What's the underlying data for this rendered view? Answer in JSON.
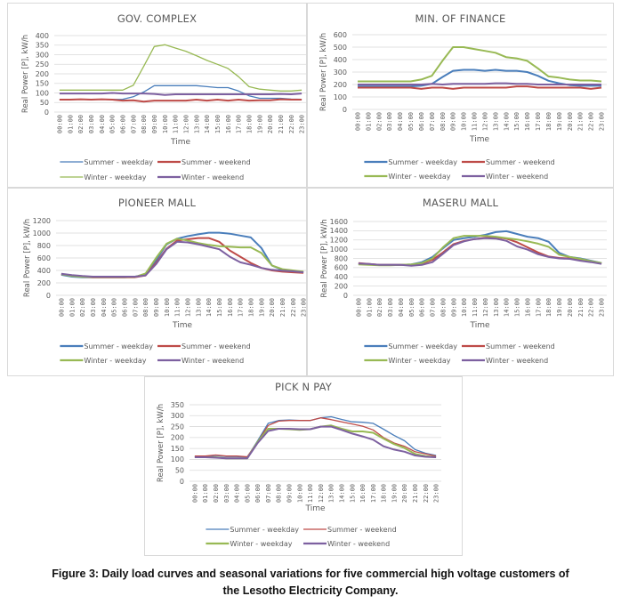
{
  "caption": {
    "line1": "Figure 3: Daily load curves and seasonal variations for five commercial high voltage customers of",
    "line2": "the Lesotho Electricity Company."
  },
  "series_colors": {
    "Summer - weekday": "#4a7ebb",
    "Summer - weekend": "#be4b48",
    "Winter - weekday": "#98b954",
    "Winter - weekend": "#7d60a0"
  },
  "chart_data": [
    {
      "id": "gov-complex",
      "type": "line",
      "title": "GOV. COMPLEX",
      "xlabel": "Time",
      "ylabel": "Real Power [P], kW/h",
      "ylim": [
        0,
        400
      ],
      "yticks": [
        0,
        50,
        100,
        150,
        200,
        250,
        300,
        350,
        400
      ],
      "grid": true,
      "legend_position": "bottom",
      "categories": [
        "00:00",
        "01:00",
        "02:00",
        "03:00",
        "04:00",
        "05:00",
        "06:00",
        "07:00",
        "08:00",
        "09:00",
        "10:00",
        "11:00",
        "12:00",
        "13:00",
        "14:00",
        "15:00",
        "16:00",
        "17:00",
        "18:00",
        "19:00",
        "20:00",
        "21:00",
        "22:00",
        "23:00"
      ],
      "series": [
        {
          "name": "Summer - weekday",
          "values": [
            65,
            65,
            67,
            66,
            67,
            66,
            67,
            80,
            105,
            138,
            138,
            138,
            138,
            138,
            133,
            128,
            128,
            110,
            85,
            72,
            72,
            72,
            68,
            67
          ]
        },
        {
          "name": "Summer - weekend",
          "values": [
            65,
            65,
            67,
            65,
            67,
            65,
            60,
            62,
            55,
            60,
            60,
            60,
            60,
            65,
            60,
            65,
            60,
            65,
            60,
            62,
            62,
            67,
            65,
            65
          ]
        },
        {
          "name": "Winter - weekday",
          "values": [
            115,
            115,
            115,
            115,
            115,
            115,
            115,
            140,
            240,
            343,
            352,
            335,
            318,
            295,
            270,
            250,
            228,
            185,
            133,
            120,
            115,
            110,
            110,
            115
          ]
        },
        {
          "name": "Winter - weekend",
          "values": [
            97,
            97,
            97,
            97,
            97,
            100,
            97,
            97,
            97,
            95,
            90,
            93,
            93,
            93,
            93,
            93,
            93,
            93,
            93,
            93,
            93,
            95,
            93,
            97
          ]
        }
      ]
    },
    {
      "id": "min-of-finance",
      "type": "line",
      "title": "MIN. OF FINANCE",
      "xlabel": "Time",
      "ylabel": "Real Power [P], kW/h",
      "ylim": [
        0,
        600
      ],
      "yticks": [
        0,
        100,
        200,
        300,
        400,
        500,
        600
      ],
      "grid": true,
      "legend_position": "bottom",
      "categories": [
        "00:00",
        "01:00",
        "02:00",
        "03:00",
        "04:00",
        "05:00",
        "06:00",
        "07:00",
        "08:00",
        "09:00",
        "10:00",
        "11:00",
        "12:00",
        "13:00",
        "14:00",
        "15:00",
        "16:00",
        "17:00",
        "18:00",
        "19:00",
        "20:00",
        "21:00",
        "22:00",
        "23:00"
      ],
      "series": [
        {
          "name": "Summer - weekday",
          "values": [
            185,
            185,
            185,
            185,
            185,
            185,
            190,
            205,
            260,
            310,
            318,
            318,
            310,
            318,
            310,
            310,
            300,
            270,
            230,
            210,
            195,
            190,
            190,
            190
          ]
        },
        {
          "name": "Summer - weekend",
          "values": [
            175,
            175,
            175,
            175,
            175,
            175,
            165,
            175,
            175,
            165,
            175,
            175,
            175,
            175,
            175,
            185,
            185,
            175,
            175,
            175,
            175,
            175,
            165,
            175
          ]
        },
        {
          "name": "Winter - weekday",
          "values": [
            225,
            225,
            225,
            225,
            225,
            225,
            240,
            270,
            390,
            500,
            500,
            485,
            470,
            455,
            420,
            410,
            390,
            330,
            265,
            255,
            240,
            232,
            232,
            225
          ]
        },
        {
          "name": "Winter - weekend",
          "values": [
            200,
            200,
            200,
            200,
            200,
            200,
            200,
            205,
            200,
            205,
            205,
            205,
            205,
            210,
            210,
            205,
            205,
            200,
            200,
            200,
            200,
            200,
            200,
            200
          ]
        }
      ]
    },
    {
      "id": "pioneer-mall",
      "type": "line",
      "title": "PIONEER MALL",
      "xlabel": "Time",
      "ylabel": "Real Power [P], kW/h",
      "ylim": [
        0,
        1200
      ],
      "yticks": [
        0,
        200,
        400,
        600,
        800,
        1000,
        1200
      ],
      "grid": true,
      "legend_position": "bottom",
      "categories": [
        "00:00",
        "01:00",
        "02:00",
        "03:00",
        "04:00",
        "05:00",
        "06:00",
        "07:00",
        "08:00",
        "09:00",
        "10:00",
        "11:00",
        "12:00",
        "13:00",
        "14:00",
        "15:00",
        "16:00",
        "17:00",
        "18:00",
        "19:00",
        "20:00",
        "21:00",
        "22:00",
        "23:00"
      ],
      "series": [
        {
          "name": "Summer - weekday",
          "values": [
            330,
            300,
            290,
            290,
            290,
            290,
            290,
            300,
            330,
            560,
            820,
            910,
            950,
            980,
            1005,
            1005,
            990,
            960,
            930,
            760,
            480,
            410,
            390,
            370
          ]
        },
        {
          "name": "Summer - weekend",
          "values": [
            340,
            320,
            300,
            290,
            290,
            290,
            290,
            290,
            320,
            520,
            750,
            880,
            900,
            920,
            920,
            860,
            720,
            620,
            520,
            440,
            400,
            380,
            370,
            360
          ]
        },
        {
          "name": "Winter - weekday",
          "values": [
            340,
            310,
            295,
            295,
            295,
            295,
            295,
            295,
            350,
            600,
            830,
            910,
            880,
            840,
            810,
            790,
            780,
            770,
            770,
            680,
            480,
            420,
            400,
            380
          ]
        },
        {
          "name": "Winter - weekend",
          "values": [
            345,
            325,
            310,
            300,
            300,
            300,
            300,
            300,
            320,
            500,
            740,
            860,
            850,
            820,
            780,
            740,
            620,
            530,
            490,
            440,
            410,
            395,
            385,
            370
          ]
        }
      ]
    },
    {
      "id": "maseru-mall",
      "type": "line",
      "title": "MASERU MALL",
      "xlabel": "Time",
      "ylabel": "Real Power [P], kW/h",
      "ylim": [
        0,
        1600
      ],
      "yticks": [
        0,
        200,
        400,
        600,
        800,
        1000,
        1200,
        1400,
        1600
      ],
      "grid": true,
      "legend_position": "bottom",
      "categories": [
        "00:00",
        "01:00",
        "02:00",
        "03:00",
        "04:00",
        "05:00",
        "06:00",
        "07:00",
        "08:00",
        "09:00",
        "10:00",
        "11:00",
        "12:00",
        "13:00",
        "14:00",
        "15:00",
        "16:00",
        "17:00",
        "18:00",
        "19:00",
        "20:00",
        "21:00",
        "22:00",
        "23:00"
      ],
      "series": [
        {
          "name": "Summer - weekday",
          "values": [
            680,
            670,
            660,
            660,
            660,
            670,
            720,
            830,
            1020,
            1200,
            1240,
            1270,
            1310,
            1370,
            1390,
            1330,
            1270,
            1240,
            1160,
            920,
            830,
            800,
            750,
            700
          ]
        },
        {
          "name": "Summer - weekend",
          "values": [
            700,
            680,
            660,
            660,
            660,
            660,
            690,
            770,
            930,
            1110,
            1180,
            1220,
            1250,
            1260,
            1230,
            1150,
            1040,
            930,
            840,
            810,
            800,
            770,
            730,
            690
          ]
        },
        {
          "name": "Winter - weekday",
          "values": [
            670,
            660,
            650,
            650,
            660,
            670,
            700,
            800,
            1040,
            1240,
            1290,
            1290,
            1290,
            1270,
            1240,
            1210,
            1170,
            1120,
            1050,
            880,
            830,
            790,
            740,
            700
          ]
        },
        {
          "name": "Winter - weekend",
          "values": [
            690,
            680,
            660,
            660,
            660,
            640,
            660,
            720,
            900,
            1090,
            1170,
            1220,
            1240,
            1230,
            1180,
            1060,
            990,
            890,
            830,
            800,
            790,
            750,
            720,
            680
          ]
        }
      ]
    },
    {
      "id": "pick-n-pay",
      "type": "line",
      "title": "PICK N PAY",
      "xlabel": "Time",
      "ylabel": "Real Power [P], kW/h",
      "ylim": [
        0,
        350
      ],
      "yticks": [
        0,
        50,
        100,
        150,
        200,
        250,
        300,
        350
      ],
      "grid": true,
      "legend_position": "bottom",
      "categories": [
        "00:00",
        "01:00",
        "02:00",
        "03:00",
        "04:00",
        "05:00",
        "06:00",
        "07:00",
        "08:00",
        "09:00",
        "10:00",
        "11:00",
        "12:00",
        "13:00",
        "14:00",
        "15:00",
        "16:00",
        "17:00",
        "18:00",
        "19:00",
        "20:00",
        "21:00",
        "22:00",
        "23:00"
      ],
      "series": [
        {
          "name": "Summer - weekday",
          "values": [
            113,
            113,
            118,
            113,
            113,
            110,
            185,
            265,
            278,
            280,
            278,
            278,
            290,
            295,
            283,
            272,
            270,
            265,
            238,
            210,
            185,
            145,
            128,
            118
          ]
        },
        {
          "name": "Summer - weekend",
          "values": [
            115,
            115,
            120,
            115,
            115,
            112,
            180,
            255,
            275,
            278,
            278,
            278,
            290,
            282,
            272,
            262,
            252,
            235,
            200,
            175,
            160,
            135,
            125,
            115
          ]
        },
        {
          "name": "Winter - weekday",
          "values": [
            110,
            110,
            110,
            105,
            105,
            105,
            180,
            240,
            240,
            238,
            235,
            238,
            250,
            255,
            240,
            228,
            228,
            222,
            195,
            170,
            152,
            125,
            115,
            110
          ]
        },
        {
          "name": "Winter - weekend",
          "values": [
            110,
            110,
            108,
            105,
            105,
            105,
            175,
            230,
            240,
            240,
            238,
            238,
            250,
            250,
            235,
            218,
            205,
            190,
            160,
            145,
            135,
            118,
            112,
            110
          ]
        }
      ]
    }
  ]
}
